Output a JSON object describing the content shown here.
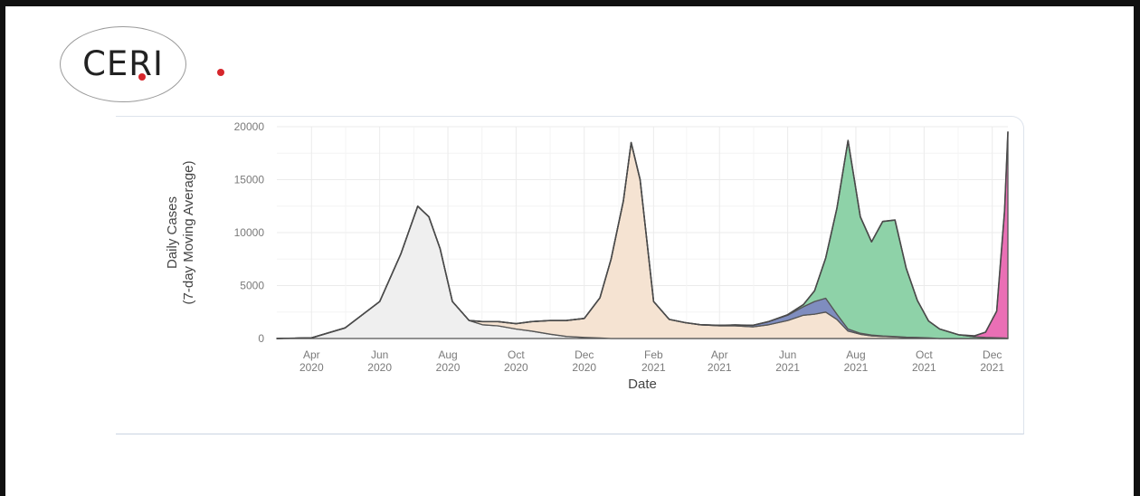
{
  "logo": {
    "text": "CERI",
    "accent_color": "#d6262c"
  },
  "chart_data": {
    "type": "area",
    "stacked": true,
    "xlabel": "Date",
    "ylabel": [
      "Daily Cases",
      "(7-day Moving Average)"
    ],
    "ylim": [
      0,
      20000
    ],
    "xlim": [
      "2020-03-01",
      "2021-12-15"
    ],
    "yticks": [
      0,
      5000,
      10000,
      15000,
      20000
    ],
    "xticks": [
      {
        "date": "2020-04-01",
        "label": [
          "Apr",
          "2020"
        ]
      },
      {
        "date": "2020-06-01",
        "label": [
          "Jun",
          "2020"
        ]
      },
      {
        "date": "2020-08-01",
        "label": [
          "Aug",
          "2020"
        ]
      },
      {
        "date": "2020-10-01",
        "label": [
          "Oct",
          "2020"
        ]
      },
      {
        "date": "2020-12-01",
        "label": [
          "Dec",
          "2020"
        ]
      },
      {
        "date": "2021-02-01",
        "label": [
          "Feb",
          "2021"
        ]
      },
      {
        "date": "2021-04-01",
        "label": [
          "Apr",
          "2021"
        ]
      },
      {
        "date": "2021-06-01",
        "label": [
          "Jun",
          "2021"
        ]
      },
      {
        "date": "2021-08-01",
        "label": [
          "Aug",
          "2021"
        ]
      },
      {
        "date": "2021-10-01",
        "label": [
          "Oct",
          "2021"
        ]
      },
      {
        "date": "2021-12-01",
        "label": [
          "Dec",
          "2021"
        ]
      }
    ],
    "grid": true,
    "legend": "none",
    "x": [
      "2020-03-01",
      "2020-04-01",
      "2020-05-01",
      "2020-06-01",
      "2020-06-20",
      "2020-07-05",
      "2020-07-15",
      "2020-07-25",
      "2020-08-05",
      "2020-08-20",
      "2020-09-01",
      "2020-09-15",
      "2020-10-01",
      "2020-10-15",
      "2020-11-01",
      "2020-11-15",
      "2020-12-01",
      "2020-12-15",
      "2020-12-25",
      "2021-01-05",
      "2021-01-12",
      "2021-01-20",
      "2021-02-01",
      "2021-02-15",
      "2021-03-01",
      "2021-03-15",
      "2021-04-01",
      "2021-04-15",
      "2021-05-01",
      "2021-05-15",
      "2021-06-01",
      "2021-06-15",
      "2021-06-25",
      "2021-07-05",
      "2021-07-15",
      "2021-07-25",
      "2021-08-05",
      "2021-08-15",
      "2021-08-25",
      "2021-09-05",
      "2021-09-15",
      "2021-09-25",
      "2021-10-05",
      "2021-10-15",
      "2021-11-01",
      "2021-11-15",
      "2021-11-25",
      "2021-12-05",
      "2021-12-12",
      "2021-12-15"
    ],
    "series": [
      {
        "color": "#efefef",
        "values": [
          0,
          60,
          1000,
          3500,
          8000,
          12500,
          11500,
          8500,
          3500,
          1700,
          1300,
          1200,
          900,
          700,
          400,
          200,
          100,
          50,
          0,
          0,
          0,
          0,
          0,
          0,
          0,
          0,
          0,
          0,
          0,
          0,
          0,
          0,
          0,
          0,
          0,
          0,
          0,
          0,
          0,
          0,
          0,
          0,
          0,
          0,
          0,
          0,
          0,
          0,
          0,
          0
        ]
      },
      {
        "color": "#f5e3d2",
        "values": [
          0,
          0,
          0,
          0,
          0,
          0,
          0,
          0,
          0,
          0,
          300,
          400,
          500,
          900,
          1300,
          1500,
          1800,
          3800,
          7500,
          13000,
          18500,
          15000,
          3500,
          1800,
          1500,
          1300,
          1200,
          1200,
          1100,
          1300,
          1700,
          2200,
          2300,
          2500,
          1800,
          700,
          400,
          250,
          200,
          150,
          100,
          80,
          50,
          0,
          0,
          0,
          0,
          0,
          0,
          0
        ]
      },
      {
        "color": "#7f8dbf",
        "values": [
          0,
          0,
          0,
          0,
          0,
          0,
          0,
          0,
          0,
          0,
          0,
          0,
          0,
          0,
          0,
          0,
          0,
          0,
          0,
          0,
          0,
          0,
          0,
          0,
          0,
          0,
          50,
          80,
          150,
          300,
          500,
          800,
          1200,
          1300,
          500,
          200,
          100,
          80,
          50,
          40,
          30,
          20,
          10,
          0,
          0,
          0,
          0,
          0,
          0,
          0
        ]
      },
      {
        "color": "#8ed2a8",
        "values": [
          0,
          0,
          0,
          0,
          0,
          0,
          0,
          0,
          0,
          0,
          0,
          0,
          0,
          0,
          0,
          0,
          0,
          0,
          0,
          0,
          0,
          0,
          0,
          0,
          0,
          0,
          0,
          0,
          0,
          0,
          50,
          200,
          1000,
          3800,
          10000,
          17800,
          11000,
          8800,
          10800,
          11000,
          6500,
          3500,
          1600,
          900,
          350,
          150,
          100,
          80,
          50,
          20
        ]
      },
      {
        "color": "#ea6fb5",
        "values": [
          0,
          0,
          0,
          0,
          0,
          0,
          0,
          0,
          0,
          0,
          0,
          0,
          0,
          0,
          0,
          0,
          0,
          0,
          0,
          0,
          0,
          0,
          0,
          0,
          0,
          0,
          0,
          0,
          0,
          0,
          0,
          0,
          0,
          0,
          0,
          0,
          0,
          0,
          0,
          0,
          0,
          0,
          0,
          0,
          0,
          100,
          500,
          2500,
          12000,
          19500
        ]
      }
    ]
  }
}
